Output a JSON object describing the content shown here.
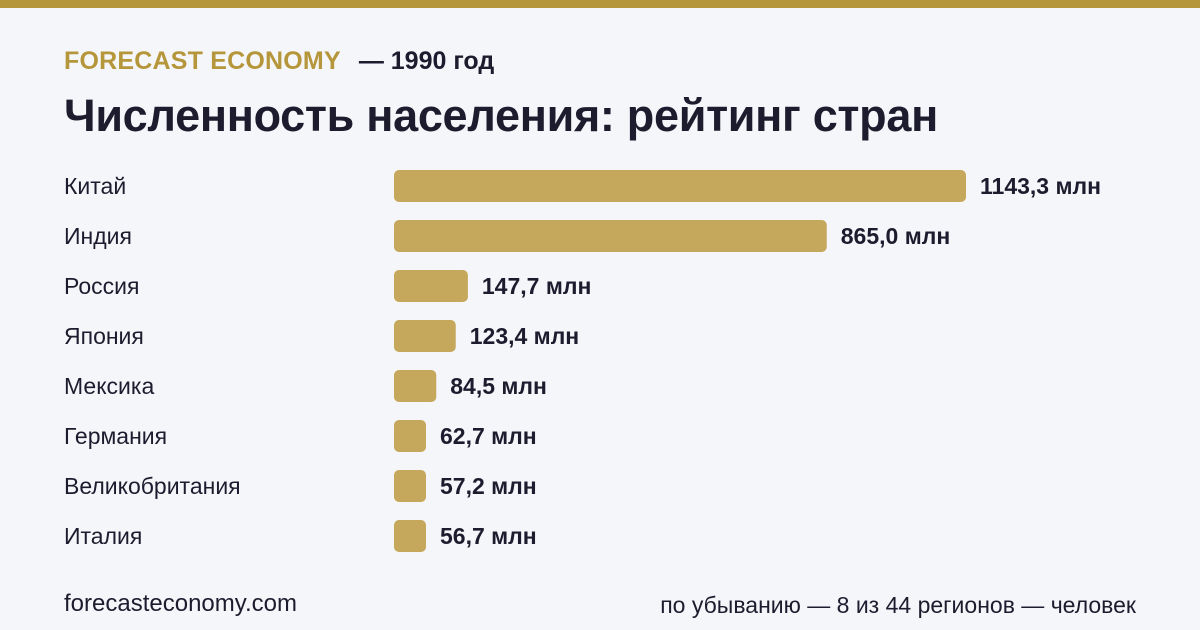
{
  "header": {
    "brand": "FORECAST ECONOMY",
    "year": "— 1990 год",
    "title": "Численность населения: рейтинг стран"
  },
  "colors": {
    "accent": "#b5963a",
    "bar": "#c6a85c",
    "text": "#1c1c2e",
    "background": "#f5f6fa"
  },
  "chart_data": {
    "type": "bar",
    "orientation": "horizontal",
    "title": "Численность населения: рейтинг стран",
    "categories": [
      "Китай",
      "Индия",
      "Россия",
      "Япония",
      "Мексика",
      "Германия",
      "Великобритания",
      "Италия"
    ],
    "values": [
      1143.3,
      865.0,
      147.7,
      123.4,
      84.5,
      62.7,
      57.2,
      56.7
    ],
    "value_labels": [
      "1143,3 млн",
      "865,0 млн",
      "147,7 млн",
      "123,4 млн",
      "84,5 млн",
      "62,7 млн",
      "57,2 млн",
      "56,7 млн"
    ],
    "unit": "млн",
    "xlim": [
      0,
      1143.3
    ],
    "grid": false,
    "legend": "none"
  },
  "footer": {
    "site": "forecasteconomy.com",
    "note": "по убыванию — 8 из 44 регионов — человек"
  }
}
